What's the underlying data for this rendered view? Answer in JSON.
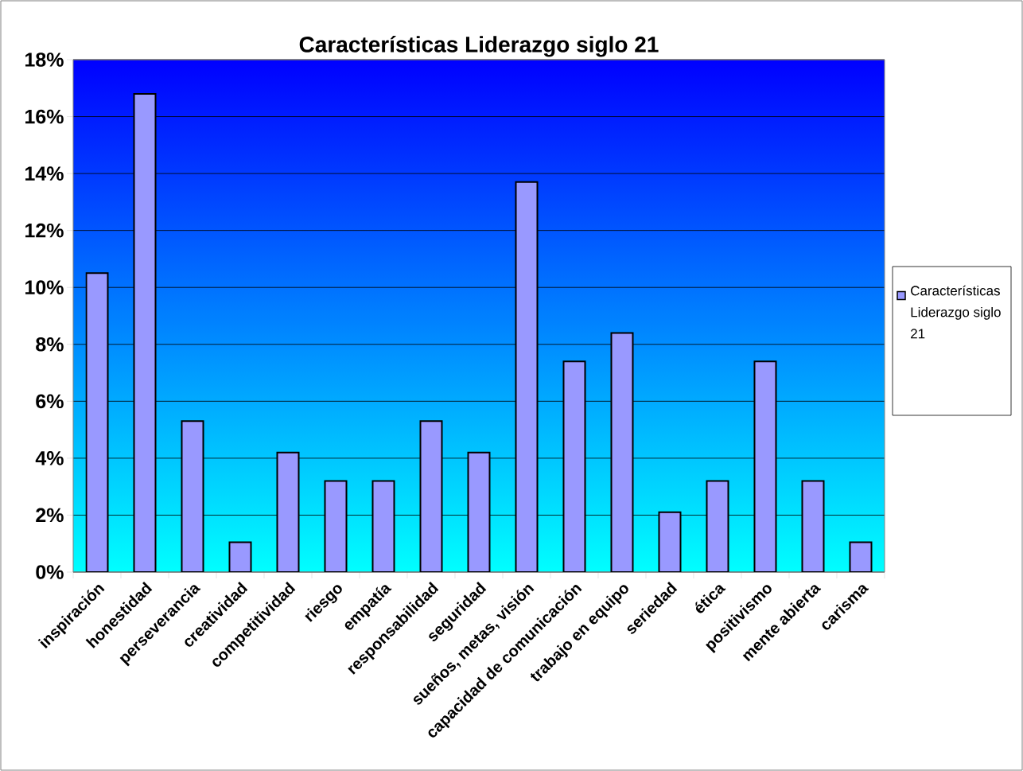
{
  "chart_data": {
    "type": "bar",
    "title": "Características Liderazgo siglo 21",
    "categories": [
      "inspiración",
      "honestidad",
      "perseverancia",
      "creatividad",
      "competitividad",
      "riesgo",
      "empatía",
      "responsabilidad",
      "seguridad",
      "sueños, metas, visión",
      "capacidad de comunicación",
      "trabajo en equipo",
      "seriedad",
      "ética",
      "positivismo",
      "mente abierta",
      "carisma"
    ],
    "series": [
      {
        "name": "Características Liderazgo siglo 21",
        "color": "#9999ff",
        "values": [
          10.5,
          16.8,
          5.3,
          1.05,
          4.2,
          3.2,
          3.2,
          5.3,
          4.2,
          13.7,
          7.4,
          8.4,
          2.1,
          3.2,
          7.4,
          3.2,
          1.05
        ]
      }
    ],
    "ylim": [
      0,
      18
    ],
    "yticks": [
      {
        "value": 0,
        "label": "0%"
      },
      {
        "value": 2,
        "label": "2%"
      },
      {
        "value": 4,
        "label": "4%"
      },
      {
        "value": 6,
        "label": "6%"
      },
      {
        "value": 8,
        "label": "8%"
      },
      {
        "value": 10,
        "label": "10%"
      },
      {
        "value": 12,
        "label": "12%"
      },
      {
        "value": 14,
        "label": "14%"
      },
      {
        "value": 16,
        "label": "16%"
      },
      {
        "value": 18,
        "label": "18%"
      }
    ],
    "grid": "y",
    "legend": "right"
  }
}
